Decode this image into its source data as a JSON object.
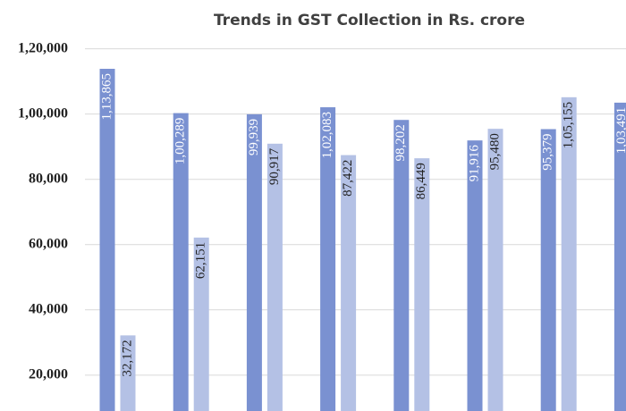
{
  "chart_data": {
    "type": "bar",
    "title": "Trends in GST Collection in Rs. crore",
    "series": [
      {
        "color": "#7a91d1",
        "values": [
          113865,
          100289,
          99939,
          102083,
          98202,
          91916,
          95379,
          103491
        ],
        "value_labels": [
          "1,13,865",
          "1,00,289",
          "99,939",
          "1,02,083",
          "98,202",
          "91,916",
          "95,379",
          "1,03,491"
        ]
      },
      {
        "color": "#b4c1e5",
        "values": [
          32172,
          62151,
          90917,
          87422,
          86449,
          95480,
          105155,
          null
        ],
        "value_labels": [
          "32,172",
          "62,151",
          "90,917",
          "87,422",
          "86,449",
          "95,480",
          "1,05,155",
          null
        ]
      }
    ],
    "ylim": [
      9000,
      124000
    ],
    "yticks": [
      {
        "value": 20000,
        "label": "20,000"
      },
      {
        "value": 40000,
        "label": "40,000"
      },
      {
        "value": 60000,
        "label": "60,000"
      },
      {
        "value": 80000,
        "label": "80,000"
      },
      {
        "value": 100000,
        "label": "1,00,000"
      },
      {
        "value": 120000,
        "label": "1,20,000"
      }
    ],
    "grid": true
  }
}
